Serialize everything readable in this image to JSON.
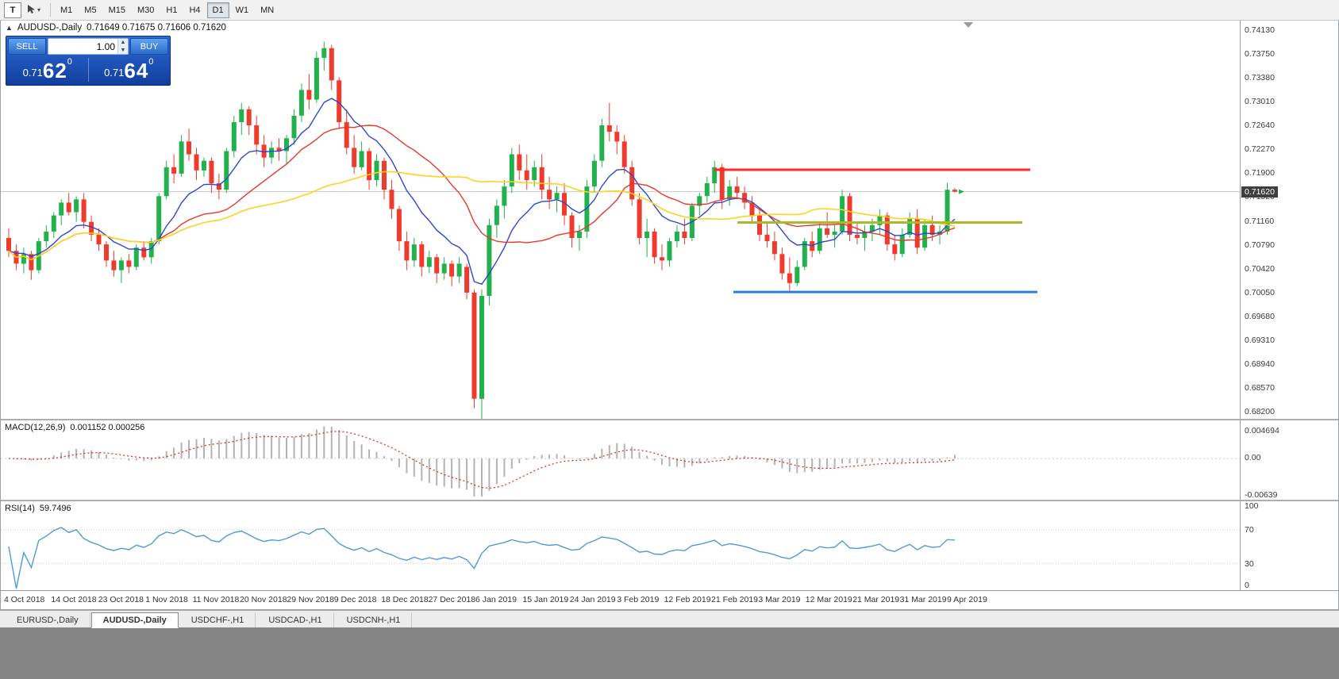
{
  "toolbar": {
    "text_tool_label": "T",
    "timeframes": [
      "M1",
      "M5",
      "M15",
      "M30",
      "H1",
      "H4",
      "D1",
      "W1",
      "MN"
    ],
    "active_timeframe": "D1"
  },
  "chart": {
    "title_symbol": "AUDUSD-,Daily",
    "title_ohlc": "0.71649 0.71675 0.71606 0.71620",
    "panel_toggle_icon": "▲",
    "current_price": "0.71620",
    "price_scale": [
      "0.74130",
      "0.73750",
      "0.73380",
      "0.73010",
      "0.72640",
      "0.72270",
      "0.71900",
      "0.71520",
      "0.71160",
      "0.70790",
      "0.70420",
      "0.70050",
      "0.69680",
      "0.69310",
      "0.68940",
      "0.68570",
      "0.68200"
    ],
    "trade_panel": {
      "sell_label": "SELL",
      "buy_label": "BUY",
      "volume": "1.00",
      "sell_price": {
        "prefix": "0.71",
        "pips": "62",
        "point": "0"
      },
      "buy_price": {
        "prefix": "0.71",
        "pips": "64",
        "point": "0"
      }
    }
  },
  "chart_data": {
    "type": "candlestick",
    "symbol": "AUDUSD",
    "timeframe": "Daily",
    "price_range": [
      0.682,
      0.7413
    ],
    "current_price": 0.7162,
    "colors": {
      "up": "#22b14c",
      "down": "#ef3b2d",
      "macd_bar": "#b3b3b3",
      "macd_signal": "#e03030",
      "rsi_line": "#4f9bd9",
      "current_line": "#c9c9c9"
    },
    "moving_averages": [
      {
        "type": "ema",
        "period": 10,
        "color": "#2f45d0",
        "width": 1.4
      },
      {
        "type": "sma",
        "period": 20,
        "color": "#e8372d",
        "width": 1.4
      },
      {
        "type": "sma",
        "period": 45,
        "color": "#ffd21f",
        "width": 1.6
      }
    ],
    "trend_lines": [
      {
        "price": 0.7196,
        "from": 94,
        "to": 136,
        "color": "#ff2d26",
        "width": 3
      },
      {
        "price": 0.7114,
        "from": 97,
        "to": 135,
        "color": "#a9b927",
        "width": 3
      },
      {
        "price": 0.7006,
        "from": 96.5,
        "to": 137,
        "color": "#2b7fd4",
        "width": 3
      }
    ],
    "x_labels": [
      "4 Oct 2018",
      "14 Oct 2018",
      "23 Oct 2018",
      "1 Nov 2018",
      "11 Nov 2018",
      "20 Nov 2018",
      "29 Nov 2018",
      "9 Dec 2018",
      "18 Dec 2018",
      "27 Dec 2018",
      "6 Jan 2019",
      "15 Jan 2019",
      "24 Jan 2019",
      "3 Feb 2019",
      "12 Feb 2019",
      "21 Feb 2019",
      "3 Mar 2019",
      "12 Mar 2019",
      "21 Mar 2019",
      "31 Mar 2019",
      "9 Apr 2019"
    ],
    "indicators": {
      "macd": {
        "name": "MACD(12,26,9)",
        "values": "0.001152 0.000256",
        "scale": [
          "0.004694",
          "0.00",
          "-0.00639"
        ]
      },
      "rsi": {
        "name": "RSI(14)",
        "values": "59.7496",
        "scale": [
          "100",
          "70",
          "30",
          "0"
        ],
        "levels": [
          70,
          30
        ]
      }
    },
    "candles": [
      [
        0.709,
        0.7105,
        0.706,
        0.707
      ],
      [
        0.707,
        0.708,
        0.704,
        0.705
      ],
      [
        0.705,
        0.7075,
        0.7035,
        0.7065
      ],
      [
        0.7065,
        0.707,
        0.7025,
        0.704
      ],
      [
        0.704,
        0.709,
        0.7035,
        0.7085
      ],
      [
        0.7085,
        0.711,
        0.7075,
        0.71
      ],
      [
        0.71,
        0.713,
        0.709,
        0.7125
      ],
      [
        0.7125,
        0.715,
        0.711,
        0.7145
      ],
      [
        0.7145,
        0.716,
        0.7125,
        0.713
      ],
      [
        0.713,
        0.7155,
        0.7115,
        0.715
      ],
      [
        0.715,
        0.716,
        0.7105,
        0.7115
      ],
      [
        0.7115,
        0.7125,
        0.7085,
        0.7095
      ],
      [
        0.7095,
        0.7105,
        0.707,
        0.708
      ],
      [
        0.708,
        0.7085,
        0.7045,
        0.7055
      ],
      [
        0.7055,
        0.707,
        0.703,
        0.704
      ],
      [
        0.704,
        0.706,
        0.702,
        0.7055
      ],
      [
        0.7055,
        0.7065,
        0.7035,
        0.7045
      ],
      [
        0.7045,
        0.708,
        0.704,
        0.7075
      ],
      [
        0.7075,
        0.7085,
        0.7055,
        0.706
      ],
      [
        0.706,
        0.709,
        0.705,
        0.7085
      ],
      [
        0.7085,
        0.716,
        0.708,
        0.7155
      ],
      [
        0.7155,
        0.721,
        0.715,
        0.72
      ],
      [
        0.72,
        0.722,
        0.7175,
        0.719
      ],
      [
        0.719,
        0.725,
        0.7185,
        0.724
      ],
      [
        0.724,
        0.726,
        0.721,
        0.722
      ],
      [
        0.722,
        0.723,
        0.718,
        0.7195
      ],
      [
        0.7195,
        0.7215,
        0.7185,
        0.721
      ],
      [
        0.721,
        0.7215,
        0.716,
        0.7175
      ],
      [
        0.7175,
        0.719,
        0.715,
        0.7165
      ],
      [
        0.7165,
        0.723,
        0.716,
        0.7225
      ],
      [
        0.7225,
        0.728,
        0.7215,
        0.727
      ],
      [
        0.727,
        0.73,
        0.725,
        0.729
      ],
      [
        0.729,
        0.7295,
        0.725,
        0.7265
      ],
      [
        0.7265,
        0.728,
        0.722,
        0.7235
      ],
      [
        0.7235,
        0.725,
        0.72,
        0.7215
      ],
      [
        0.7215,
        0.724,
        0.7205,
        0.723
      ],
      [
        0.723,
        0.7245,
        0.721,
        0.7225
      ],
      [
        0.7225,
        0.725,
        0.7205,
        0.7245
      ],
      [
        0.7245,
        0.729,
        0.7235,
        0.728
      ],
      [
        0.728,
        0.733,
        0.727,
        0.732
      ],
      [
        0.732,
        0.7345,
        0.729,
        0.7305
      ],
      [
        0.7305,
        0.738,
        0.73,
        0.737
      ],
      [
        0.737,
        0.7395,
        0.735,
        0.7385
      ],
      [
        0.7385,
        0.739,
        0.732,
        0.7335
      ],
      [
        0.7335,
        0.734,
        0.726,
        0.727
      ],
      [
        0.727,
        0.729,
        0.722,
        0.723
      ],
      [
        0.723,
        0.725,
        0.719,
        0.72
      ],
      [
        0.72,
        0.724,
        0.7195,
        0.7225
      ],
      [
        0.7225,
        0.723,
        0.7165,
        0.718
      ],
      [
        0.718,
        0.722,
        0.717,
        0.721
      ],
      [
        0.721,
        0.7215,
        0.715,
        0.7165
      ],
      [
        0.7165,
        0.718,
        0.712,
        0.7135
      ],
      [
        0.7135,
        0.714,
        0.707,
        0.7085
      ],
      [
        0.7085,
        0.71,
        0.704,
        0.7055
      ],
      [
        0.7055,
        0.709,
        0.7045,
        0.708
      ],
      [
        0.708,
        0.7085,
        0.703,
        0.7045
      ],
      [
        0.7045,
        0.707,
        0.7035,
        0.706
      ],
      [
        0.706,
        0.7065,
        0.702,
        0.7035
      ],
      [
        0.7035,
        0.706,
        0.7025,
        0.705
      ],
      [
        0.705,
        0.7055,
        0.7015,
        0.703
      ],
      [
        0.703,
        0.706,
        0.702,
        0.705
      ],
      [
        0.7045,
        0.705,
        0.6995,
        0.7005
      ],
      [
        0.7005,
        0.701,
        0.6825,
        0.684
      ],
      [
        0.684,
        0.701,
        0.674,
        0.7
      ],
      [
        0.7,
        0.712,
        0.6985,
        0.711
      ],
      [
        0.711,
        0.715,
        0.709,
        0.714
      ],
      [
        0.714,
        0.718,
        0.712,
        0.717
      ],
      [
        0.717,
        0.723,
        0.716,
        0.722
      ],
      [
        0.722,
        0.7235,
        0.718,
        0.7195
      ],
      [
        0.7195,
        0.722,
        0.7165,
        0.718
      ],
      [
        0.718,
        0.721,
        0.717,
        0.72
      ],
      [
        0.72,
        0.722,
        0.715,
        0.7165
      ],
      [
        0.7165,
        0.7185,
        0.7135,
        0.715
      ],
      [
        0.715,
        0.717,
        0.713,
        0.716
      ],
      [
        0.716,
        0.7175,
        0.711,
        0.7125
      ],
      [
        0.7125,
        0.713,
        0.7075,
        0.709
      ],
      [
        0.709,
        0.711,
        0.707,
        0.71
      ],
      [
        0.71,
        0.718,
        0.709,
        0.717
      ],
      [
        0.717,
        0.722,
        0.716,
        0.721
      ],
      [
        0.721,
        0.7275,
        0.72,
        0.7265
      ],
      [
        0.7265,
        0.73,
        0.724,
        0.7255
      ],
      [
        0.7255,
        0.7265,
        0.722,
        0.724
      ],
      [
        0.724,
        0.725,
        0.719,
        0.72
      ],
      [
        0.72,
        0.721,
        0.714,
        0.715
      ],
      [
        0.715,
        0.716,
        0.708,
        0.709
      ],
      [
        0.709,
        0.712,
        0.706,
        0.71
      ],
      [
        0.71,
        0.7105,
        0.705,
        0.706
      ],
      [
        0.706,
        0.708,
        0.704,
        0.7055
      ],
      [
        0.7055,
        0.709,
        0.7045,
        0.7085
      ],
      [
        0.7085,
        0.711,
        0.7075,
        0.71
      ],
      [
        0.71,
        0.712,
        0.708,
        0.709
      ],
      [
        0.709,
        0.7145,
        0.7085,
        0.714
      ],
      [
        0.714,
        0.716,
        0.7125,
        0.7155
      ],
      [
        0.7155,
        0.7185,
        0.7145,
        0.7175
      ],
      [
        0.7175,
        0.721,
        0.716,
        0.72
      ],
      [
        0.72,
        0.7205,
        0.7135,
        0.715
      ],
      [
        0.715,
        0.718,
        0.714,
        0.717
      ],
      [
        0.717,
        0.7185,
        0.715,
        0.716
      ],
      [
        0.716,
        0.717,
        0.7135,
        0.7145
      ],
      [
        0.7145,
        0.7155,
        0.7115,
        0.7125
      ],
      [
        0.7125,
        0.7135,
        0.7085,
        0.7095
      ],
      [
        0.7095,
        0.7115,
        0.7075,
        0.7085
      ],
      [
        0.7085,
        0.71,
        0.7055,
        0.7065
      ],
      [
        0.7065,
        0.7075,
        0.7025,
        0.7035
      ],
      [
        0.7035,
        0.706,
        0.7005,
        0.702
      ],
      [
        0.702,
        0.7055,
        0.7015,
        0.7045
      ],
      [
        0.7045,
        0.709,
        0.704,
        0.7085
      ],
      [
        0.7085,
        0.71,
        0.706,
        0.707
      ],
      [
        0.707,
        0.7115,
        0.7065,
        0.7105
      ],
      [
        0.7105,
        0.713,
        0.709,
        0.7095
      ],
      [
        0.7095,
        0.711,
        0.7075,
        0.71
      ],
      [
        0.71,
        0.7165,
        0.7095,
        0.7155
      ],
      [
        0.7155,
        0.716,
        0.7085,
        0.7095
      ],
      [
        0.7095,
        0.7115,
        0.708,
        0.709
      ],
      [
        0.709,
        0.711,
        0.707,
        0.71
      ],
      [
        0.71,
        0.712,
        0.7085,
        0.711
      ],
      [
        0.711,
        0.7135,
        0.7095,
        0.7125
      ],
      [
        0.7125,
        0.713,
        0.707,
        0.708
      ],
      [
        0.708,
        0.7095,
        0.7055,
        0.7065
      ],
      [
        0.7065,
        0.7105,
        0.706,
        0.7095
      ],
      [
        0.7095,
        0.713,
        0.709,
        0.712
      ],
      [
        0.712,
        0.7135,
        0.7065,
        0.7075
      ],
      [
        0.7075,
        0.712,
        0.707,
        0.711
      ],
      [
        0.711,
        0.7125,
        0.7085,
        0.7095
      ],
      [
        0.7095,
        0.711,
        0.708,
        0.71
      ],
      [
        0.71,
        0.7176,
        0.7095,
        0.7165
      ],
      [
        0.71649,
        0.71675,
        0.71606,
        0.7162
      ]
    ]
  },
  "bottom_tabs": {
    "items": [
      "EURUSD-,Daily",
      "AUDUSD-,Daily",
      "USDCHF-,H1",
      "USDCAD-,H1",
      "USDCNH-,H1"
    ],
    "active_index": 1
  }
}
